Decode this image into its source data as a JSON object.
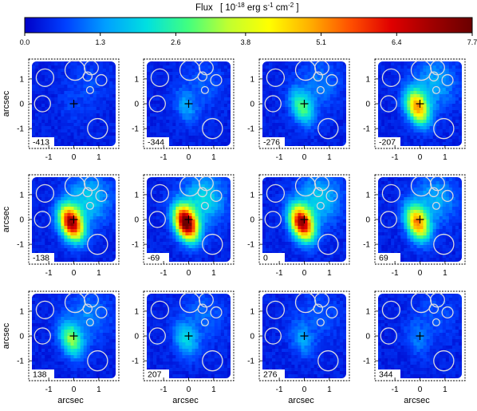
{
  "colorbar": {
    "label_main": "Flux",
    "label_unit_pre": "[ 10",
    "label_unit_exp": "-18",
    "label_unit_mid": " erg s",
    "label_unit_exp2": "-1",
    "label_unit_mid2": " cm",
    "label_unit_exp3": "-2",
    "label_unit_post": " ]",
    "ticks": [
      "0.0",
      "1.3",
      "2.6",
      "3.8",
      "5.1",
      "6.4",
      "7.7"
    ],
    "range": [
      0.0,
      7.7
    ],
    "colormap": [
      "#0000c8",
      "#0040ff",
      "#00a0ff",
      "#00e0e0",
      "#40ff80",
      "#c0ff30",
      "#ffff00",
      "#ffb000",
      "#ff5000",
      "#e00000",
      "#a00000",
      "#6a0000"
    ]
  },
  "chart_data": {
    "type": "heatmap",
    "title": "Flux [10^-18 erg s^-1 cm^-2]",
    "xlabel": "arcsec",
    "ylabel": "arcsec",
    "xlim": [
      -1.8,
      1.8
    ],
    "ylim": [
      -1.8,
      1.8
    ],
    "x_ticks": [
      "-1",
      "0",
      "1"
    ],
    "y_ticks": [
      "-1",
      "0",
      "1"
    ],
    "panel_labels": [
      "-413",
      "-344",
      "-276",
      "-207",
      "-138",
      "-69",
      "0",
      "69",
      "138",
      "207",
      "276",
      "344"
    ],
    "peak_flux": [
      0.25,
      1.0,
      2.4,
      4.6,
      6.6,
      7.4,
      6.6,
      4.8,
      2.8,
      1.6,
      1.0,
      0.7
    ],
    "circles": [
      {
        "x": -1.15,
        "y": 1.05,
        "r": 0.35
      },
      {
        "x": 0.05,
        "y": 1.35,
        "r": 0.4
      },
      {
        "x": 0.7,
        "y": 1.45,
        "r": 0.28
      },
      {
        "x": 0.55,
        "y": 1.1,
        "r": 0.18
      },
      {
        "x": 0.65,
        "y": 0.55,
        "r": 0.14
      },
      {
        "x": 1.1,
        "y": 0.95,
        "r": 0.22
      },
      {
        "x": -1.25,
        "y": 0.0,
        "r": 0.32
      },
      {
        "x": 0.95,
        "y": -1.0,
        "r": 0.4
      }
    ],
    "marker": {
      "x": 0.0,
      "y": 0.0,
      "symbol": "+"
    }
  }
}
